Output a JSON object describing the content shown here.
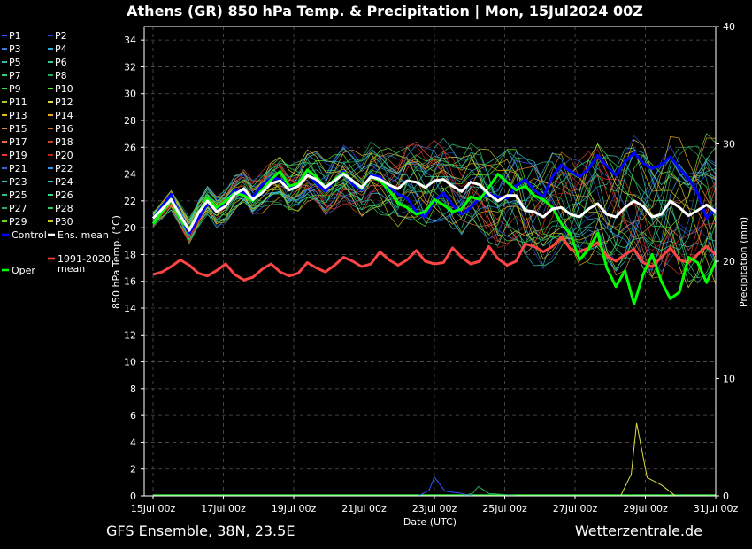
{
  "header": {
    "title": "Athens  (GR)  850 hPa Temp. & Precipitation | Mon, 15Jul2024 00Z"
  },
  "footer": {
    "left": "GFS Ensemble, 38N, 23.5E",
    "right": "Wetterzentrale.de"
  },
  "chart_data": {
    "type": "line",
    "title": "Athens  (GR)  850 hPa Temp. & Precipitation | Mon, 15Jul2024 00Z",
    "xlabel": "Date (UTC)",
    "ylabel": "850 hPa Temp. (°C)",
    "y2label": "Precipitation (mm)",
    "ylim": [
      0,
      35
    ],
    "y2lim": [
      0,
      40
    ],
    "yticks": [
      "0",
      "2",
      "4",
      "6",
      "8",
      "10",
      "12",
      "14",
      "16",
      "18",
      "20",
      "22",
      "24",
      "26",
      "28",
      "30",
      "32",
      "34"
    ],
    "y2ticks": [
      "0",
      "10",
      "20",
      "30",
      "40"
    ],
    "xticks": [
      "15Jul 00z",
      "17Jul 00z",
      "19Jul 00z",
      "21Jul 00z",
      "23Jul 00z",
      "25Jul 00z",
      "27Jul 00z",
      "29Jul 00z",
      "31Jul 00z"
    ],
    "grid": true,
    "legend_position": "left",
    "legend": [
      {
        "name": "P1",
        "color": "#3355ff"
      },
      {
        "name": "P2",
        "color": "#2244cc"
      },
      {
        "name": "P3",
        "color": "#4477dd"
      },
      {
        "name": "P4",
        "color": "#33aadd"
      },
      {
        "name": "P5",
        "color": "#33bbbb"
      },
      {
        "name": "P6",
        "color": "#33cc99"
      },
      {
        "name": "P7",
        "color": "#33cc77"
      },
      {
        "name": "P8",
        "color": "#22aa55"
      },
      {
        "name": "P9",
        "color": "#33dd44"
      },
      {
        "name": "P10",
        "color": "#55ee22"
      },
      {
        "name": "P11",
        "color": "#aacc22"
      },
      {
        "name": "P12",
        "color": "#dddd44"
      },
      {
        "name": "P13",
        "color": "#ddbb22"
      },
      {
        "name": "P14",
        "color": "#eeaa22"
      },
      {
        "name": "P15",
        "color": "#dd8844"
      },
      {
        "name": "P16",
        "color": "#cc7733"
      },
      {
        "name": "P17",
        "color": "#ee6644"
      },
      {
        "name": "P18",
        "color": "#cc4422"
      },
      {
        "name": "P19",
        "color": "#ee3333"
      },
      {
        "name": "P20",
        "color": "#bb2222"
      },
      {
        "name": "P21",
        "color": "#3366cc"
      },
      {
        "name": "P22",
        "color": "#3399ee"
      },
      {
        "name": "P23",
        "color": "#44bbcc"
      },
      {
        "name": "P24",
        "color": "#33cccc"
      },
      {
        "name": "P25",
        "color": "#33bb99"
      },
      {
        "name": "P26",
        "color": "#33dd88"
      },
      {
        "name": "P27",
        "color": "#33aa66"
      },
      {
        "name": "P28",
        "color": "#33cc55"
      },
      {
        "name": "P29",
        "color": "#66dd22"
      },
      {
        "name": "P30",
        "color": "#cccc22"
      },
      {
        "name": "Control",
        "color": "#0000ff"
      },
      {
        "name": "Ens. mean",
        "color": "#ffffff"
      },
      {
        "name": "Oper",
        "color": "#00ff00"
      },
      {
        "name": "1991-2020 mean",
        "color": "#ff4444"
      }
    ],
    "series": [
      {
        "name": "Ens. mean",
        "color": "#ffffff",
        "values": [
          20.7,
          21.4,
          22.1,
          20.9,
          19.8,
          21.1,
          22.0,
          21.2,
          21.6,
          22.5,
          22.9,
          22.1,
          22.6,
          23.3,
          23.5,
          22.8,
          23.1,
          23.9,
          23.6,
          23.0,
          23.5,
          24.0,
          23.5,
          23.0,
          23.8,
          23.6,
          23.2,
          22.9,
          23.5,
          23.4,
          23.0,
          23.5,
          23.6,
          23.1,
          22.7,
          23.4,
          23.2,
          22.5,
          22.0,
          22.4,
          22.4,
          21.3,
          21.2,
          20.8,
          21.4,
          21.5,
          21.0,
          20.8,
          21.4,
          21.8,
          21.0,
          20.8,
          21.5,
          22.0,
          21.6,
          20.8,
          21.0,
          22.0,
          21.5,
          20.9,
          21.3,
          21.7,
          21.2
        ]
      },
      {
        "name": "Control",
        "color": "#0000ff",
        "values": [
          20.7,
          21.6,
          22.5,
          20.8,
          19.6,
          20.7,
          21.8,
          21.2,
          22.0,
          22.8,
          22.6,
          22.3,
          23.2,
          23.7,
          23.6,
          22.9,
          23.2,
          24.0,
          23.3,
          22.7,
          23.6,
          24.2,
          23.2,
          22.8,
          23.9,
          23.8,
          23.0,
          22.5,
          22.2,
          21.2,
          20.8,
          22.0,
          22.6,
          21.7,
          21.0,
          21.5,
          22.2,
          22.5,
          22.3,
          22.2,
          23.1,
          23.6,
          22.8,
          22.3,
          23.8,
          24.7,
          24.2,
          23.8,
          24.4,
          25.4,
          24.6,
          23.9,
          24.9,
          25.6,
          24.8,
          24.4,
          24.7,
          25.3,
          24.4,
          23.7,
          22.6,
          20.7,
          21.4
        ]
      },
      {
        "name": "Oper",
        "color": "#00ff00",
        "values": [
          20.3,
          21.2,
          22.1,
          20.6,
          19.9,
          21.1,
          22.2,
          21.5,
          22.0,
          22.6,
          22.4,
          22.0,
          22.8,
          23.6,
          24.2,
          23.1,
          23.3,
          24.3,
          23.8,
          23.0,
          23.6,
          24.1,
          23.5,
          22.9,
          23.8,
          23.5,
          22.8,
          21.8,
          21.5,
          21.0,
          21.2,
          22.1,
          21.7,
          21.2,
          21.4,
          22.3,
          22.1,
          23.0,
          24.0,
          23.4,
          22.8,
          23.1,
          22.4,
          22.1,
          21.5,
          20.3,
          19.5,
          17.6,
          18.4,
          19.6,
          17.0,
          15.6,
          16.8,
          14.3,
          16.5,
          18.0,
          16.0,
          14.7,
          15.2,
          17.8,
          17.4,
          15.9,
          17.5
        ]
      },
      {
        "name": "1991-2020 mean",
        "color": "#ff4444",
        "values": [
          16.5,
          16.7,
          17.1,
          17.6,
          17.2,
          16.6,
          16.4,
          16.8,
          17.3,
          16.5,
          16.1,
          16.3,
          16.9,
          17.3,
          16.7,
          16.4,
          16.6,
          17.4,
          17.0,
          16.7,
          17.2,
          17.8,
          17.5,
          17.1,
          17.3,
          18.2,
          17.6,
          17.2,
          17.6,
          18.3,
          17.5,
          17.3,
          17.4,
          18.5,
          17.8,
          17.3,
          17.5,
          18.6,
          17.7,
          17.2,
          17.5,
          18.8,
          18.6,
          18.2,
          18.6,
          19.3,
          18.4,
          18.2,
          18.5,
          18.9,
          17.9,
          17.5,
          18.0,
          18.4,
          17.4,
          17.1,
          17.8,
          18.5,
          17.6,
          17.4,
          18.0,
          18.6,
          18.0
        ]
      }
    ],
    "precipitation": [
      {
        "name": "P1",
        "peak_date": "23Jul 00z",
        "peak_mm": 1.6
      },
      {
        "name": "P12",
        "peak_date": "28Jul 18z",
        "peak_mm": 6.2
      },
      {
        "name": "P8",
        "peak_date": "24Jul 06z",
        "peak_mm": 0.8
      }
    ]
  }
}
